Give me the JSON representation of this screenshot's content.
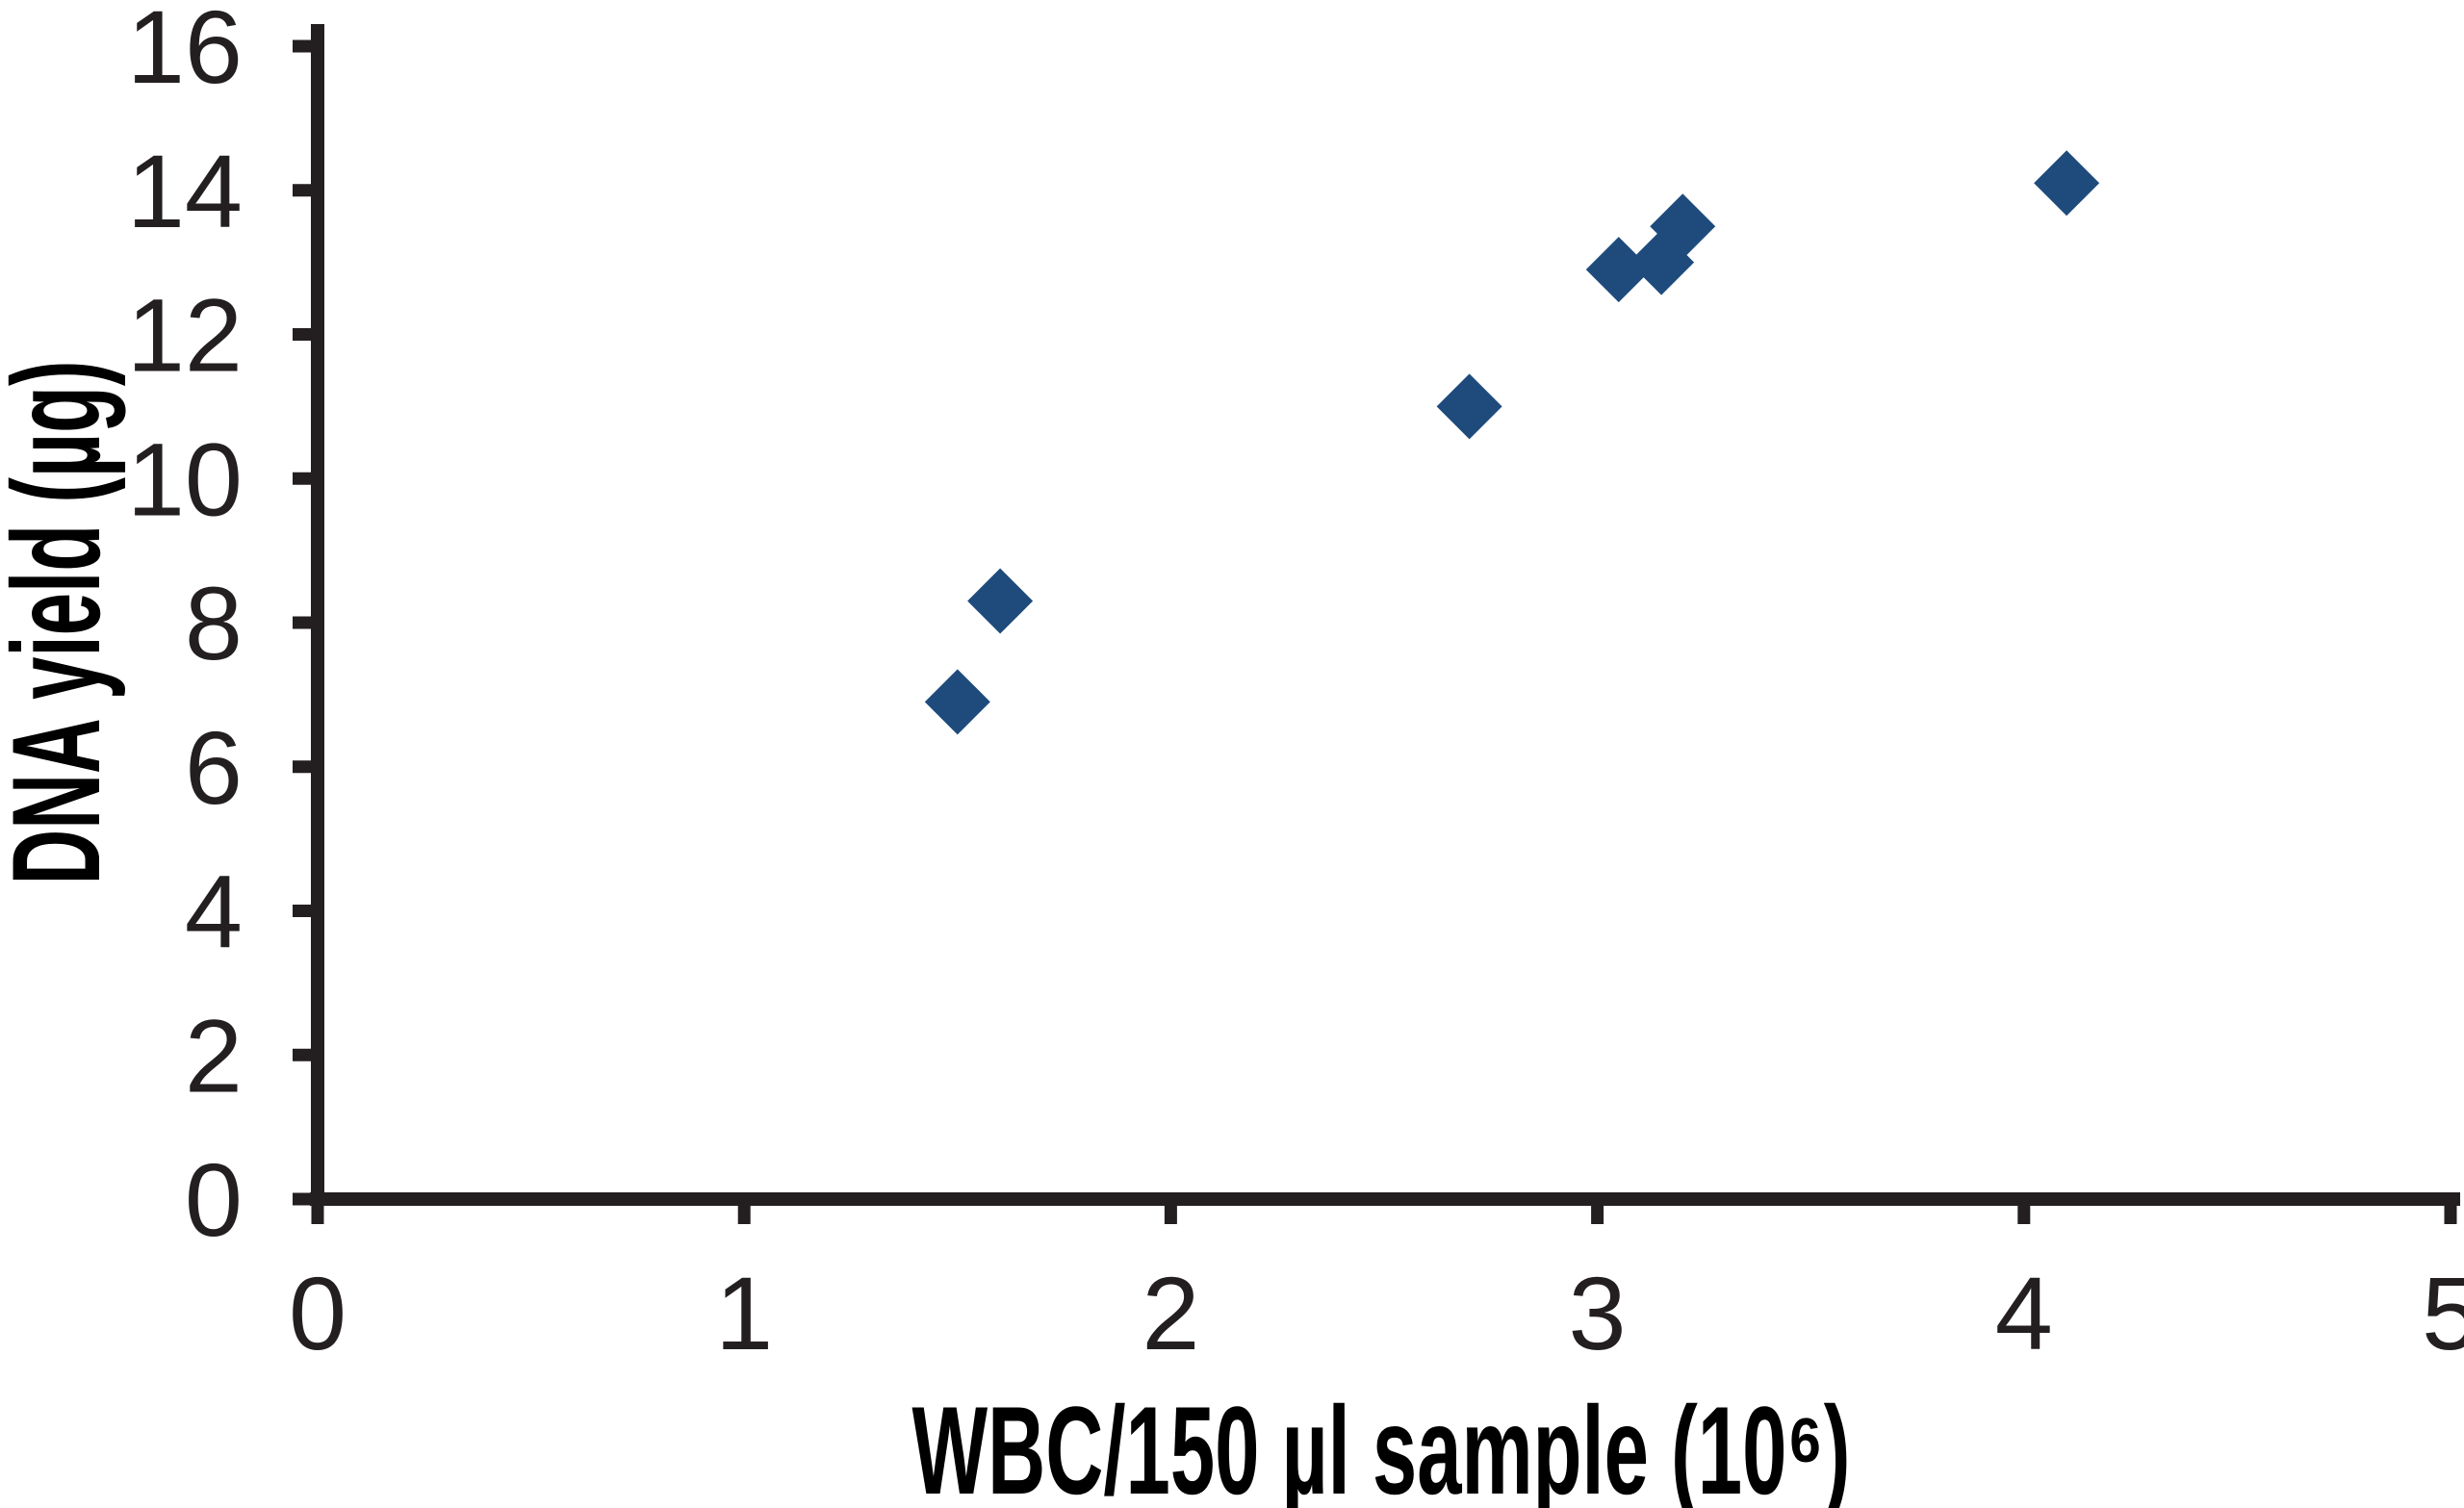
{
  "chart_data": {
    "type": "scatter",
    "title": "",
    "xlabel": "WBC/150 µl sample (10⁶)",
    "ylabel": "DNA yield (µg)",
    "xlim": [
      0,
      5
    ],
    "ylim": [
      0,
      16
    ],
    "x_ticks": [
      "0",
      "1",
      "2",
      "3",
      "4",
      "5"
    ],
    "y_ticks": [
      "0",
      "2",
      "4",
      "6",
      "8",
      "10",
      "12",
      "14",
      "16"
    ],
    "grid": false,
    "legend": "none",
    "marker": "diamond",
    "colors": {
      "marker": "#1e4b7c",
      "axis": "#231f20",
      "background": "#ffffff"
    },
    "series": [
      {
        "name": "DNA yield",
        "points": [
          {
            "x": 1.5,
            "y": 6.9
          },
          {
            "x": 1.6,
            "y": 8.3
          },
          {
            "x": 2.7,
            "y": 11.0
          },
          {
            "x": 3.05,
            "y": 12.9
          },
          {
            "x": 3.15,
            "y": 13.0
          },
          {
            "x": 3.2,
            "y": 13.5
          },
          {
            "x": 4.1,
            "y": 14.1
          }
        ]
      }
    ]
  }
}
